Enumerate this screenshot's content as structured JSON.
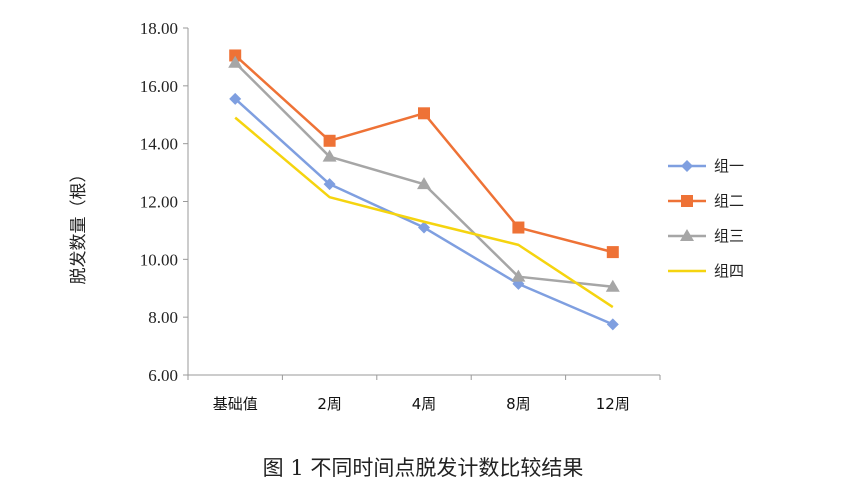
{
  "caption": "图 1  不同时间点脱发计数比较结果",
  "chart_data": {
    "type": "line",
    "categories": [
      "基础值",
      "2周",
      "4周",
      "8周",
      "12周"
    ],
    "ylabel": "脱发数量（根）",
    "ylim": [
      6,
      18
    ],
    "yticks": [
      "6.00",
      "8.00",
      "10.00",
      "12.00",
      "14.00",
      "16.00",
      "18.00"
    ],
    "grid": false,
    "legend_position": "right",
    "series": [
      {
        "name": "组一",
        "values": [
          15.55,
          12.6,
          11.1,
          9.15,
          7.75
        ],
        "color": "#7f9fe0",
        "marker": "diamond"
      },
      {
        "name": "组二",
        "values": [
          17.05,
          14.1,
          15.05,
          11.1,
          10.25
        ],
        "color": "#ee7236",
        "marker": "square"
      },
      {
        "name": "组三",
        "values": [
          16.8,
          13.55,
          12.6,
          9.4,
          9.05
        ],
        "color": "#a6a6a6",
        "marker": "triangle"
      },
      {
        "name": "组四",
        "values": [
          14.9,
          12.15,
          11.3,
          10.5,
          8.35
        ],
        "color": "#f5d40f",
        "marker": "none"
      }
    ]
  }
}
